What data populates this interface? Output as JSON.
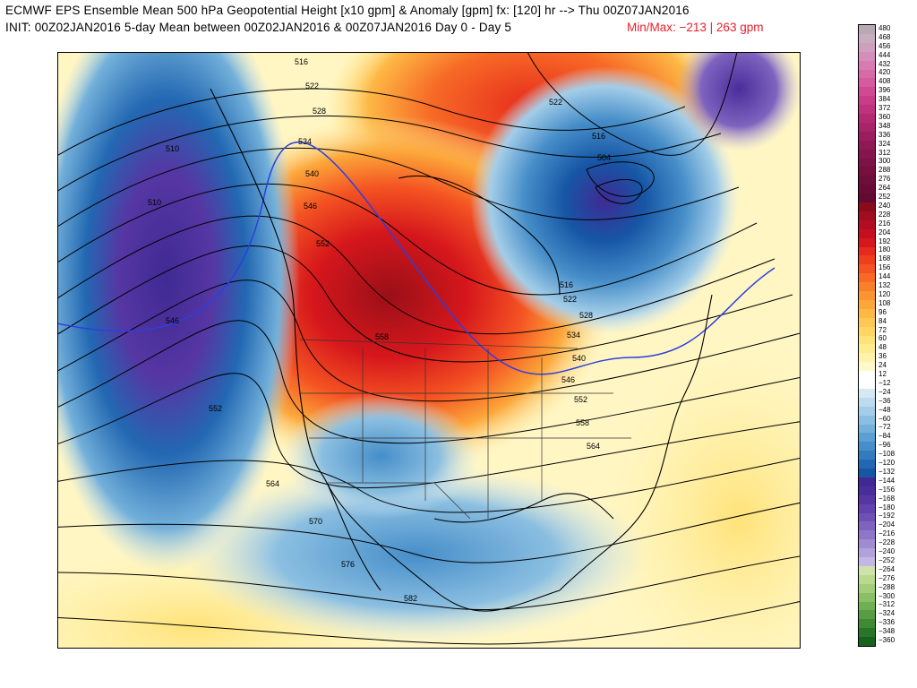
{
  "header": {
    "title_line1": "ECMWF EPS Ensemble Mean 500 hPa Geopotential Height [x10 gpm] & Anomaly [gpm] fx: [120] hr --> Thu 00Z07JAN2016",
    "title_line2": "INIT: 00Z02JAN2016 5-day Mean between 00Z02JAN2016 & 00Z07JAN2016    Day 0 - Day 5",
    "minmax_label": "Min/Max:   −213  |   263 gpm"
  },
  "map": {
    "contour_labels": [
      "516",
      "522",
      "528",
      "534",
      "540",
      "546",
      "552",
      "558",
      "564",
      "570",
      "576",
      "582",
      "510",
      "504",
      "522",
      "516",
      "510",
      "516",
      "522",
      "528",
      "534",
      "540",
      "546",
      "552",
      "558",
      "564",
      "546",
      "552"
    ]
  },
  "colorbar": {
    "labels": [
      "480",
      "468",
      "456",
      "444",
      "432",
      "420",
      "408",
      "396",
      "384",
      "372",
      "360",
      "348",
      "336",
      "324",
      "312",
      "300",
      "288",
      "276",
      "264",
      "252",
      "240",
      "228",
      "216",
      "204",
      "192",
      "180",
      "168",
      "156",
      "144",
      "132",
      "120",
      "108",
      "96",
      "84",
      "72",
      "60",
      "48",
      "36",
      "24",
      "12",
      "−12",
      "−24",
      "−36",
      "−48",
      "−60",
      "−72",
      "−84",
      "−96",
      "−108",
      "−120",
      "−132",
      "−144",
      "−156",
      "−168",
      "−180",
      "−192",
      "−204",
      "−216",
      "−228",
      "−240",
      "−252",
      "−264",
      "−276",
      "−288",
      "−300",
      "−312",
      "−324",
      "−336",
      "−348",
      "−360"
    ],
    "colors": [
      "#b9a8b6",
      "#c6aebf",
      "#cf9fbe",
      "#d58dba",
      "#d77cb2",
      "#d66ba8",
      "#d55a9e",
      "#d04a93",
      "#c83d88",
      "#bf327d",
      "#b42a71",
      "#a62467",
      "#9a1e5e",
      "#8e1954",
      "#84154d",
      "#7c1247",
      "#75103f",
      "#6e0e3a",
      "#680c35",
      "#620a30",
      "#8b0b1e",
      "#a00c20",
      "#b30d22",
      "#c5101f",
      "#d6171c",
      "#e62a1d",
      "#ef3d1e",
      "#f45322",
      "#f76a26",
      "#f9802b",
      "#fb9431",
      "#fca73a",
      "#fdb845",
      "#fec853",
      "#ffd664",
      "#ffe278",
      "#ffec90",
      "#fff3ab",
      "#fff9c9",
      "#ffffff",
      "#ffffff",
      "#d5e8f4",
      "#bcdbee",
      "#a3cde8",
      "#8bbfe1",
      "#73b0da",
      "#5c9fd2",
      "#468ec9",
      "#327cbe",
      "#2268b2",
      "#1656a5",
      "#3f2a93",
      "#4b2d9a",
      "#5636a3",
      "#6242ac",
      "#6f51b6",
      "#7e63bf",
      "#8e77c8",
      "#9f8cd1",
      "#b1a2db",
      "#c3b8e4",
      "#cde3a9",
      "#b9d991",
      "#a2cd7b",
      "#8abf66",
      "#71af53",
      "#589d42",
      "#3f8a34",
      "#297628",
      "#16621f"
    ],
    "levels": [
      480,
      468,
      456,
      444,
      432,
      420,
      408,
      396,
      384,
      372,
      360,
      348,
      336,
      324,
      312,
      300,
      288,
      276,
      264,
      252,
      240,
      228,
      216,
      204,
      192,
      180,
      168,
      156,
      144,
      132,
      120,
      108,
      96,
      84,
      72,
      60,
      48,
      36,
      24,
      12,
      -12,
      -24,
      -36,
      -48,
      -60,
      -72,
      -84,
      -96,
      -108,
      -120,
      -132,
      -144,
      -156,
      -168,
      -180,
      -192,
      -204,
      -216,
      -228,
      -240,
      -252,
      -264,
      -276,
      -288,
      -300,
      -312,
      -324,
      -336,
      -348,
      -360
    ]
  }
}
